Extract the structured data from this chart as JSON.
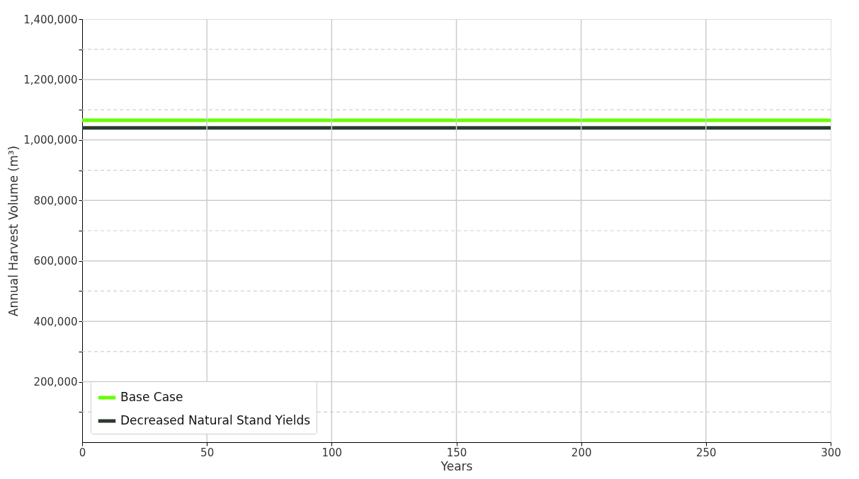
{
  "chart_data": {
    "type": "line",
    "xlabel": "Years",
    "ylabel": "Annual Harvest Volume (m³)",
    "x": [
      0,
      300
    ],
    "series": [
      {
        "name": "Base Case",
        "color": "#66ff00",
        "values": [
          1065000,
          1065000
        ]
      },
      {
        "name": "Decreased Natural Stand Yields",
        "color": "#2b3a2e",
        "values": [
          1040000,
          1040000
        ]
      }
    ],
    "xlim": [
      0,
      300
    ],
    "xticks": [
      0,
      50,
      100,
      150,
      200,
      250,
      300
    ],
    "ylim": [
      0,
      1400000
    ],
    "yticks": [
      {
        "value": 100000,
        "label": null
      },
      {
        "value": 200000,
        "label": "200,000"
      },
      {
        "value": 300000,
        "label": null
      },
      {
        "value": 400000,
        "label": "400,000"
      },
      {
        "value": 500000,
        "label": null
      },
      {
        "value": 600000,
        "label": "600,000"
      },
      {
        "value": 700000,
        "label": null
      },
      {
        "value": 800000,
        "label": "800,000"
      },
      {
        "value": 900000,
        "label": null
      },
      {
        "value": 1000000,
        "label": "1,000,000"
      },
      {
        "value": 1100000,
        "label": null
      },
      {
        "value": 1200000,
        "label": "1,200,000"
      },
      {
        "value": 1300000,
        "label": null
      },
      {
        "value": 1400000,
        "label": "1,400,000"
      }
    ],
    "grid": true,
    "legend": "bottom left",
    "line_style": "solid",
    "marker": "none"
  }
}
